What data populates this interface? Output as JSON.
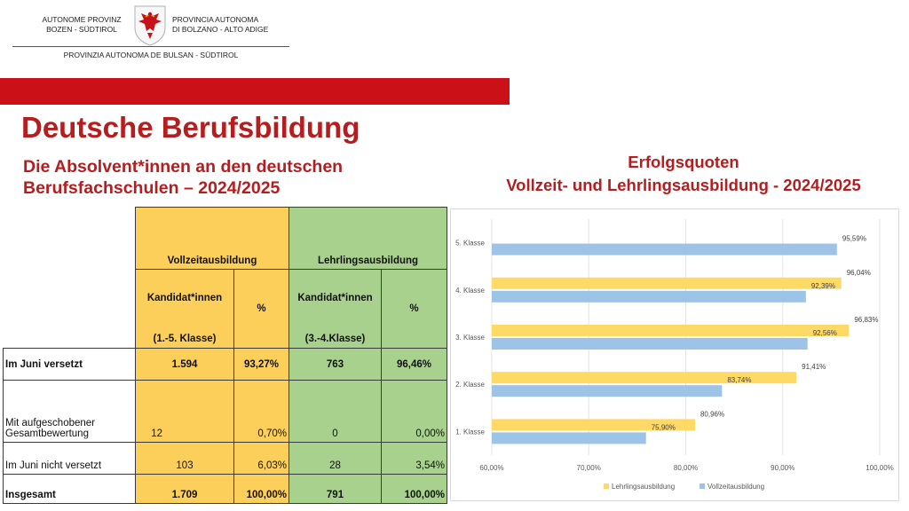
{
  "header": {
    "left_line1": "AUTONOME PROVINZ",
    "left_line2": "BOZEN - SÜDTIROL",
    "right_line1": "PROVINCIA AUTONOMA",
    "right_line2": "DI BOLZANO - ALTO ADIGE",
    "bottom_line": "PROVINZIA AUTONOMA DE BULSAN - SÜDTIROL",
    "crest_icon": "south-tyrol-eagle-crest",
    "band_color": "#cc1017"
  },
  "page": {
    "title": "Deutsche Berufsbildung",
    "subtitle_line1": "Die Absolvent*innen an den deutschen",
    "subtitle_line2": "Berufsfachschulen – 2024/2025"
  },
  "table": {
    "group_vollzeit": "Vollzeitausbildung",
    "group_lehrling": "Lehrlingsausbildung",
    "kand_label": "Kandidat*innen",
    "pct_label": "%",
    "vollzeit_range": "(1.-5. Klasse)",
    "lehrling_range": "(3.-4.Klasse)",
    "rows": [
      {
        "label": "Im Juni versetzt",
        "v_count": "1.594",
        "v_pct": "93,27%",
        "l_count": "763",
        "l_pct": "96,46%"
      },
      {
        "label_line1": "Mit aufgeschobener",
        "label_line2": "Gesamtbewertung",
        "v_count": "12",
        "v_pct": "0,70%",
        "l_count": "0",
        "l_pct": "0,00%"
      },
      {
        "label": "Im Juni nicht versetzt",
        "v_count": "103",
        "v_pct": "6,03%",
        "l_count": "28",
        "l_pct": "3,54%"
      },
      {
        "label": "Insgesamt",
        "v_count": "1.709",
        "v_pct": "100,00%",
        "l_count": "791",
        "l_pct": "100,00%"
      }
    ],
    "colors": {
      "vollzeit": "#fbcf59",
      "lehrling": "#a9d18e"
    }
  },
  "chart": {
    "title_line1": "Erfolgsquoten",
    "title_line2": "Vollzeit- und Lehrlingsausbildung - 2024/2025"
  },
  "chart_data": {
    "type": "bar",
    "orientation": "horizontal",
    "categories": [
      "1. Klasse",
      "2. Klasse",
      "3. Klasse",
      "4. Klasse",
      "5. Klasse"
    ],
    "series": [
      {
        "name": "Lehrlingsausbildung",
        "color": "#ffd966",
        "values": [
          80.96,
          91.41,
          96.83,
          96.04,
          null
        ],
        "labels": [
          "80,96%",
          "91,41%",
          "96,83%",
          "96,04%",
          ""
        ]
      },
      {
        "name": "Vollzeitausbildung",
        "color": "#9dc3e6",
        "values": [
          75.9,
          83.74,
          92.56,
          92.39,
          95.59
        ],
        "labels": [
          "75,90%",
          "83,74%",
          "92,56%",
          "92,39%",
          "95,59%"
        ]
      }
    ],
    "xlim": [
      60,
      100
    ],
    "x_ticks": [
      60,
      70,
      80,
      90,
      100
    ],
    "x_tick_labels": [
      "60,00%",
      "70,00%",
      "80,00%",
      "90,00%",
      "100,00%"
    ],
    "grid": true,
    "legend": "bottom"
  }
}
